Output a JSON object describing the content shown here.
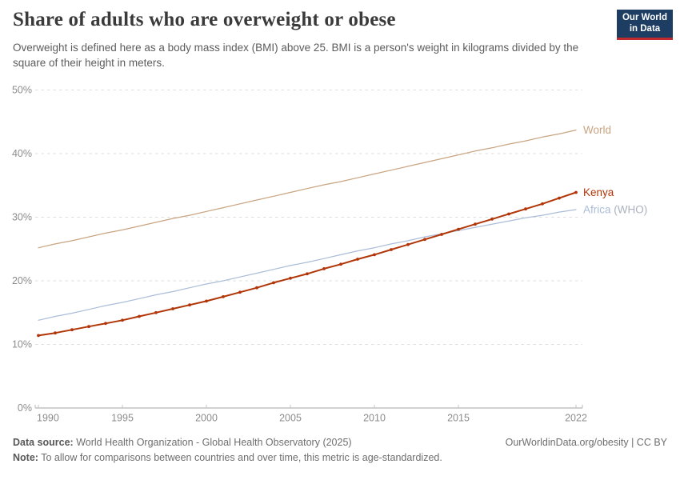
{
  "header": {
    "title": "Share of adults who are overweight or obese",
    "subtitle": "Overweight is defined here as a body mass index (BMI) above 25. BMI is a person's weight in kilograms divided by the square of their height in meters.",
    "logo": {
      "line1": "Our World",
      "line2": "in Data",
      "bg_color": "#1d3d63",
      "stripe_color": "#c12b2e"
    }
  },
  "chart_data": {
    "type": "line",
    "title": "Share of adults who are overweight or obese",
    "xlabel": "",
    "ylabel": "",
    "grid": "horizontal-dashed",
    "legend_position": "end-of-line-labels",
    "ylim": [
      0,
      52
    ],
    "y_ticks": [
      0,
      10,
      20,
      30,
      40,
      50
    ],
    "y_tick_suffix": "%",
    "x_tick_labels": [
      1990,
      1995,
      2000,
      2005,
      2010,
      2015,
      2022
    ],
    "x": [
      1990,
      1991,
      1992,
      1993,
      1994,
      1995,
      1996,
      1997,
      1998,
      1999,
      2000,
      2001,
      2002,
      2003,
      2004,
      2005,
      2006,
      2007,
      2008,
      2009,
      2010,
      2011,
      2012,
      2013,
      2014,
      2015,
      2016,
      2017,
      2018,
      2019,
      2020,
      2021,
      2022
    ],
    "series": [
      {
        "id": "world",
        "label": "World",
        "color": "#c9a480",
        "markers": false,
        "values": [
          25.2,
          25.8,
          26.3,
          26.9,
          27.5,
          28.0,
          28.6,
          29.2,
          29.8,
          30.3,
          30.9,
          31.5,
          32.1,
          32.7,
          33.3,
          33.9,
          34.5,
          35.1,
          35.6,
          36.2,
          36.8,
          37.4,
          38.0,
          38.6,
          39.2,
          39.8,
          40.4,
          40.9,
          41.5,
          42.0,
          42.6,
          43.1,
          43.7
        ]
      },
      {
        "id": "africa-who",
        "label": "Africa",
        "label_suffix": " (WHO)",
        "suffix_color": "#a9b2bd",
        "color": "#abbdd8",
        "markers": false,
        "values": [
          13.8,
          14.4,
          14.9,
          15.5,
          16.1,
          16.6,
          17.2,
          17.8,
          18.3,
          18.9,
          19.5,
          20.0,
          20.6,
          21.2,
          21.8,
          22.4,
          22.9,
          23.5,
          24.1,
          24.7,
          25.2,
          25.8,
          26.3,
          26.9,
          27.4,
          27.9,
          28.4,
          28.9,
          29.4,
          29.9,
          30.3,
          30.8,
          31.2
        ]
      },
      {
        "id": "kenya",
        "label": "Kenya",
        "color": "#b13507",
        "markers": true,
        "values": [
          11.4,
          11.8,
          12.3,
          12.8,
          13.3,
          13.8,
          14.4,
          15.0,
          15.6,
          16.2,
          16.8,
          17.5,
          18.2,
          18.9,
          19.7,
          20.4,
          21.1,
          21.9,
          22.6,
          23.4,
          24.1,
          24.9,
          25.7,
          26.5,
          27.3,
          28.1,
          28.9,
          29.7,
          30.5,
          31.3,
          32.1,
          33.0,
          33.9
        ]
      }
    ]
  },
  "footer": {
    "datasource_label": "Data source:",
    "datasource_text": " World Health Organization - Global Health Observatory (2025)",
    "rights": "OurWorldinData.org/obesity | CC BY",
    "note_label": "Note:",
    "note_text": " To allow for comparisons between countries and over time, this metric is age-standardized."
  }
}
